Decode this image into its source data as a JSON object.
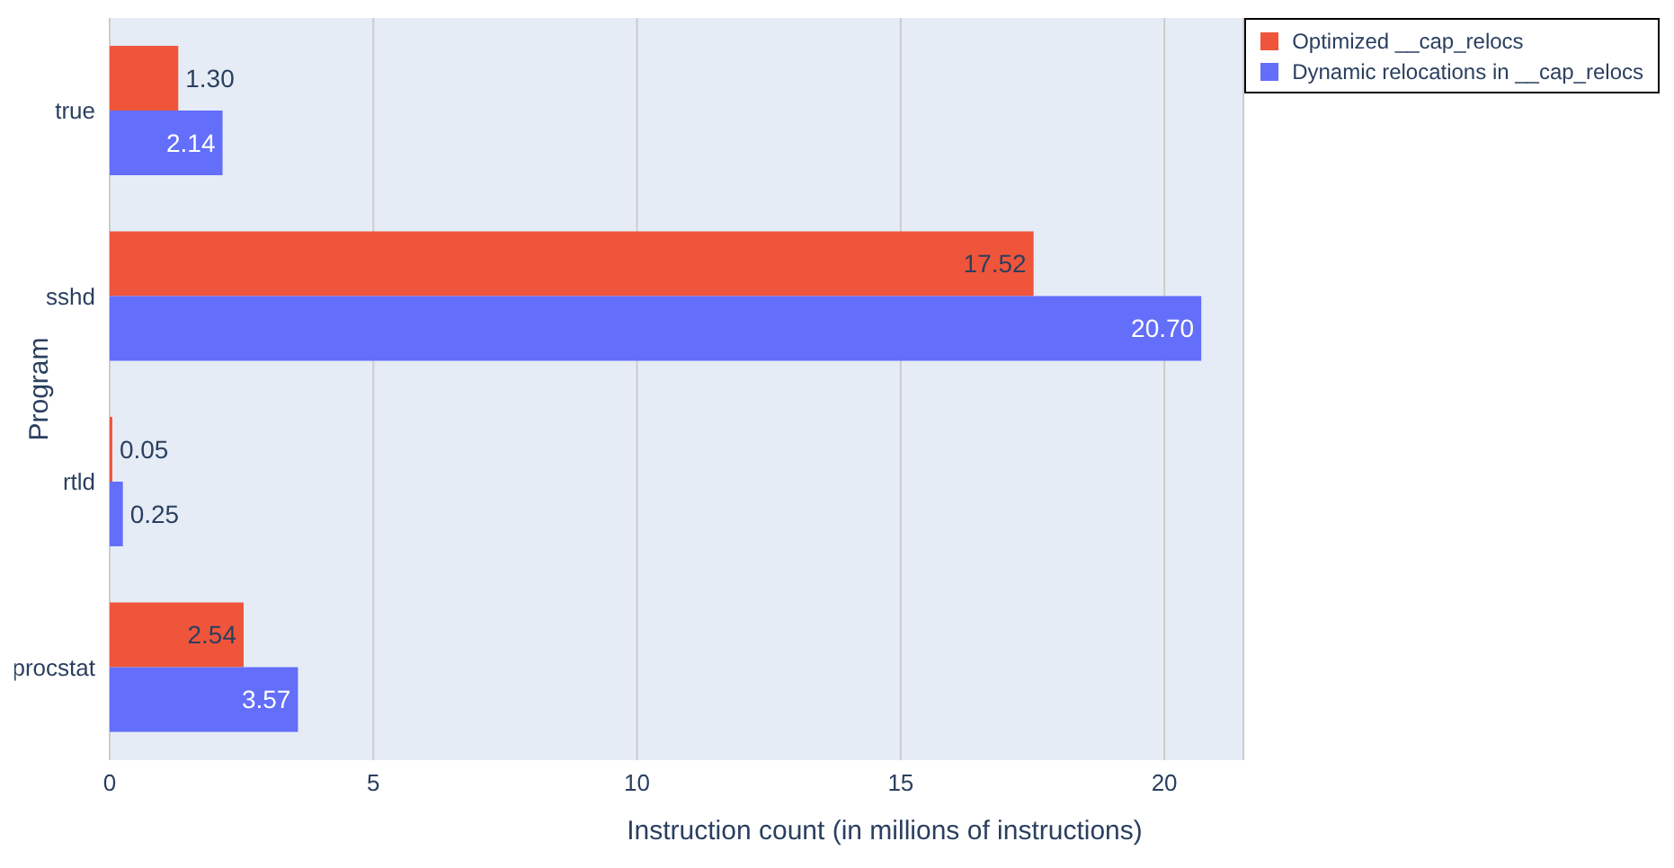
{
  "chart_data": {
    "type": "bar",
    "orientation": "horizontal",
    "xlabel": "Instruction count (in millions of instructions)",
    "ylabel": "Program",
    "categories": [
      "true",
      "sshd",
      "rtld",
      "procstat"
    ],
    "series": [
      {
        "name": "Optimized __cap_relocs",
        "color": "#ef553b",
        "values": [
          1.3,
          17.52,
          0.05,
          2.54
        ],
        "value_labels": [
          "1.30",
          "17.52",
          "0.05",
          "2.54"
        ]
      },
      {
        "name": "Dynamic relocations in __cap_relocs",
        "color": "#636efa",
        "values": [
          2.14,
          20.7,
          0.25,
          3.57
        ],
        "value_labels": [
          "2.14",
          "20.70",
          "0.25",
          "3.57"
        ]
      }
    ],
    "xlim": [
      0,
      21.5
    ],
    "xticks": [
      0,
      5,
      10,
      15,
      20
    ],
    "grid": "x",
    "legend": "top right"
  }
}
